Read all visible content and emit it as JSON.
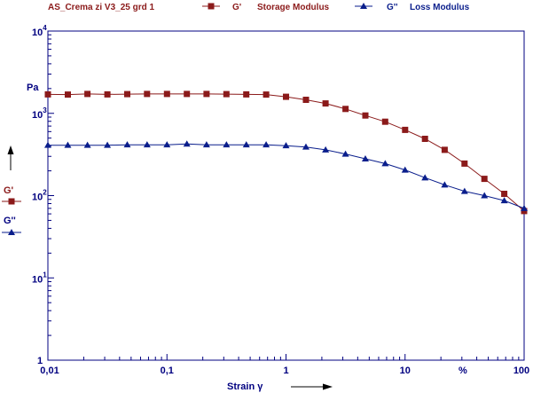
{
  "sample_name": "AS_Crema zi V3_25 grd 1",
  "legend": [
    {
      "symbol": "G'",
      "name": "Storage Modulus",
      "color": "#8b1a1a",
      "marker": "square"
    },
    {
      "symbol": "G''",
      "name": "Loss Modulus",
      "color": "#0a1e8c",
      "marker": "triangle"
    }
  ],
  "y_unit": "Pa",
  "x_unit": "%",
  "x_axis_label": "Strain γ",
  "side_labels": {
    "storage": "G'",
    "loss": "G''"
  },
  "colors": {
    "axis": "#000080",
    "storage": "#8b1a1a",
    "loss": "#0a1e8c"
  },
  "chart_data": {
    "type": "line",
    "xscale": "log",
    "yscale": "log",
    "xlim": [
      0.01,
      100
    ],
    "ylim": [
      1,
      10000
    ],
    "grid": false,
    "xlabel": "Strain γ",
    "ylabel": "Pa",
    "x_ticks": [
      "0,01",
      "0,1",
      "1",
      "10",
      "100"
    ],
    "y_ticks": [
      {
        "base": "10",
        "exp": "4",
        "value": 10000
      },
      {
        "base": "10",
        "exp": "3",
        "value": 1000
      },
      {
        "base": "10",
        "exp": "2",
        "value": 100
      },
      {
        "base": "10",
        "exp": "1",
        "value": 10
      }
    ],
    "series": [
      {
        "name": "G' Storage Modulus",
        "x": [
          0.01,
          0.0147,
          0.0215,
          0.0316,
          0.0464,
          0.0681,
          0.1,
          0.147,
          0.215,
          0.316,
          0.464,
          0.681,
          1.0,
          1.47,
          2.15,
          3.16,
          4.64,
          6.81,
          10.0,
          14.7,
          21.5,
          31.6,
          46.4,
          68.1,
          100
        ],
        "y": [
          1700,
          1690,
          1720,
          1700,
          1710,
          1720,
          1720,
          1720,
          1720,
          1710,
          1700,
          1690,
          1590,
          1460,
          1320,
          1130,
          940,
          790,
          630,
          490,
          360,
          245,
          160,
          105,
          65
        ]
      },
      {
        "name": "G'' Loss Modulus",
        "x": [
          0.01,
          0.0147,
          0.0215,
          0.0316,
          0.0464,
          0.0681,
          0.1,
          0.147,
          0.215,
          0.316,
          0.464,
          0.681,
          1.0,
          1.47,
          2.15,
          3.16,
          4.64,
          6.81,
          10.0,
          14.7,
          21.5,
          31.6,
          46.4,
          68.1,
          100
        ],
        "y": [
          410,
          410,
          410,
          410,
          415,
          415,
          415,
          425,
          415,
          415,
          415,
          415,
          405,
          390,
          360,
          320,
          280,
          245,
          205,
          165,
          135,
          113,
          100,
          87,
          70
        ]
      }
    ]
  }
}
